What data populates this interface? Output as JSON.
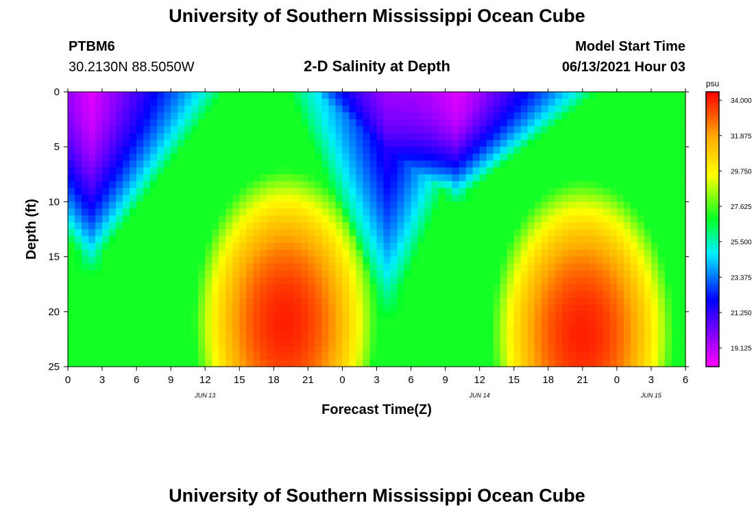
{
  "header": {
    "title": "University of Southern Mississippi Ocean Cube",
    "station_id": "PTBM6",
    "station_coords": "30.2130N  88.5050W",
    "plot_title": "2-D Salinity at Depth",
    "start_label": "Model Start Time",
    "start_value": "06/13/2021 Hour 03"
  },
  "footer": {
    "title": "University of Southern Mississippi Ocean Cube"
  },
  "chart_data": {
    "type": "heatmap",
    "title": "2-D Salinity at Depth",
    "xlabel": "Forecast Time(Z)",
    "ylabel": "Depth (ft)",
    "x_tick_labels": [
      "0",
      "3",
      "6",
      "9",
      "12",
      "15",
      "18",
      "21",
      "0",
      "3",
      "6",
      "9",
      "12",
      "15",
      "18",
      "21",
      "0",
      "3",
      "6"
    ],
    "x_range_hours": [
      0,
      54
    ],
    "date_labels": [
      {
        "label": "JUN 13",
        "hour": 12
      },
      {
        "label": "JUN 14",
        "hour": 36
      },
      {
        "label": "JUN 15",
        "hour": 51
      }
    ],
    "y_ticks": [
      0,
      5,
      10,
      15,
      20,
      25
    ],
    "ylim": [
      0,
      25
    ],
    "y_inverted": true,
    "colorbar": {
      "unit": "psu",
      "min": 18.0,
      "max": 34.5,
      "tick_labels": [
        "34.000",
        "31.875",
        "29.750",
        "27.625",
        "25.500",
        "23.375",
        "21.250",
        "19.125"
      ],
      "tick_values": [
        34.0,
        31.875,
        29.75,
        27.625,
        25.5,
        23.375,
        21.25,
        19.125
      ]
    },
    "fresh_trough_1": {
      "center_hour": 2.0,
      "bottom_depth_ft": 14.5,
      "surface_width_h": 7.0,
      "min_psu": 18.5
    },
    "fresh_trough_2": {
      "center_hour": 28.0,
      "bottom_depth_ft": 18.0,
      "surface_width_h": 5.0,
      "min_psu": 21.0
    },
    "fresh_trough_3": {
      "center_hour": 34.0,
      "bottom_depth_ft": 9.0,
      "surface_width_h": 7.5,
      "min_psu": 18.5
    },
    "saline_core_1": {
      "hour": 19.0,
      "depth_ft": 21.0,
      "max_psu": 34.0
    },
    "saline_core_2": {
      "hour": 45.0,
      "depth_ft": 22.0,
      "max_psu": 34.0
    }
  }
}
